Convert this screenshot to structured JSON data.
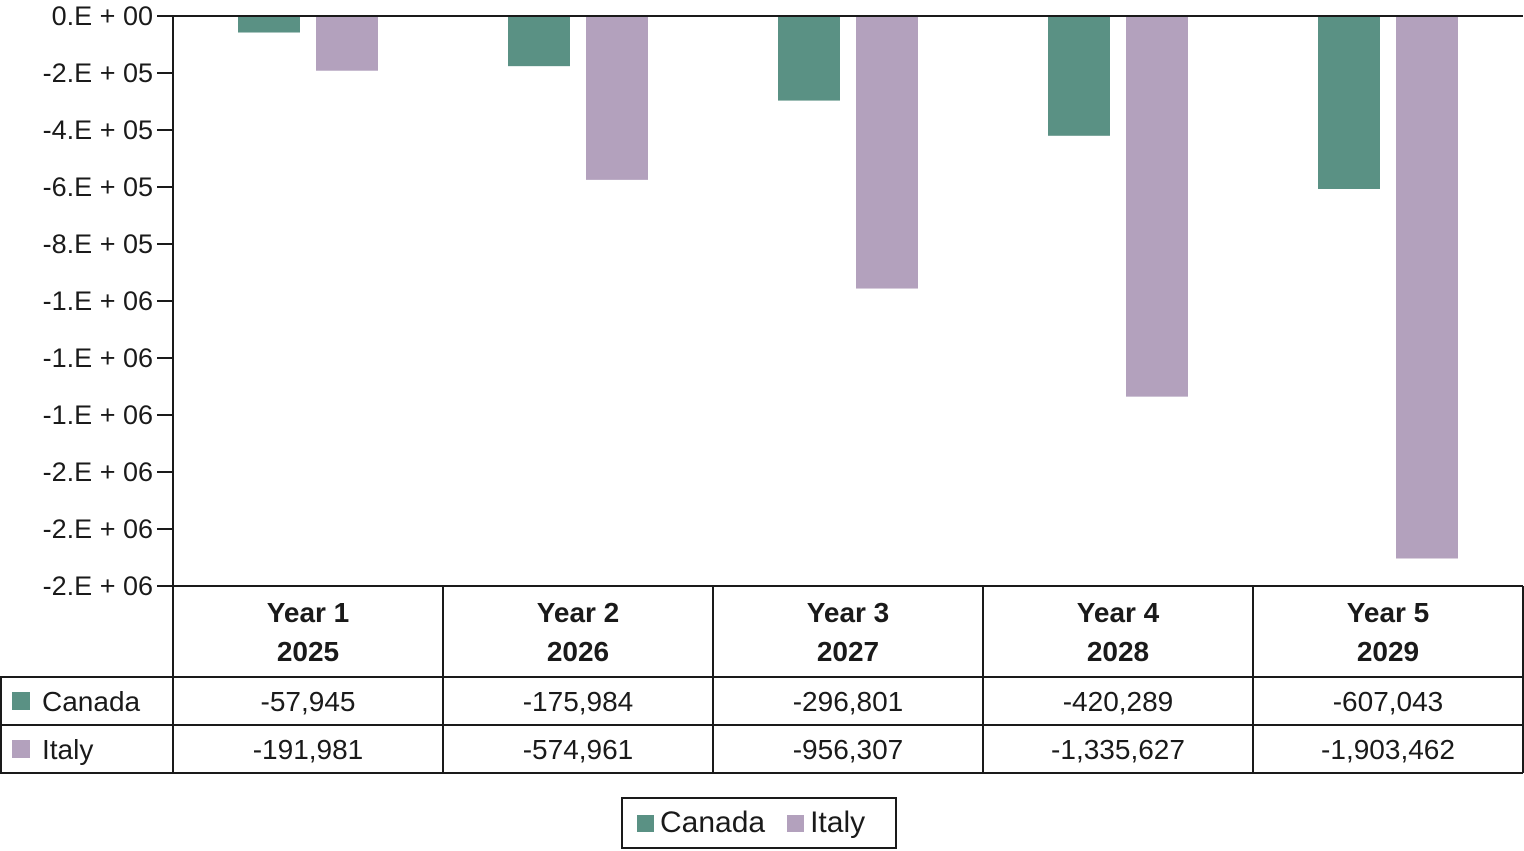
{
  "colors": {
    "canada": "#5a9184",
    "italy": "#b3a1bd",
    "axis": "#1a1a1a"
  },
  "chart_data": {
    "type": "bar",
    "categories": [
      {
        "line1": "Year 1",
        "line2": "2025"
      },
      {
        "line1": "Year 2",
        "line2": "2026"
      },
      {
        "line1": "Year 3",
        "line2": "2027"
      },
      {
        "line1": "Year 4",
        "line2": "2028"
      },
      {
        "line1": "Year 5",
        "line2": "2029"
      }
    ],
    "series": [
      {
        "name": "Canada",
        "values": [
          -57945,
          -175984,
          -296801,
          -420289,
          -607043
        ],
        "labels": [
          "-57,945",
          "-175,984",
          "-296,801",
          "-420,289",
          "-607,043"
        ]
      },
      {
        "name": "Italy",
        "values": [
          -191981,
          -574961,
          -956307,
          -1335627,
          -1903462
        ],
        "labels": [
          "-191,981",
          "-574,961",
          "-956,307",
          "-1,335,627",
          "-1,903,462"
        ]
      }
    ],
    "ylim": [
      -2000000,
      0
    ],
    "yticks": [
      0,
      -200000,
      -400000,
      -600000,
      -800000,
      -1000000,
      -1200000,
      -1400000,
      -1600000,
      -1800000,
      -2000000
    ],
    "ytick_labels": [
      "0.E + 00",
      "-2.E + 05",
      "-4.E + 05",
      "-6.E + 05",
      "-8.E + 05",
      "-1.E + 06",
      "-1.E + 06",
      "-1.E + 06",
      "-2.E + 06",
      "-2.E + 06",
      "-2.E + 06"
    ],
    "title": "",
    "xlabel": "",
    "ylabel": "",
    "grid": false,
    "legend_position": "bottom-center",
    "data_table": true
  }
}
